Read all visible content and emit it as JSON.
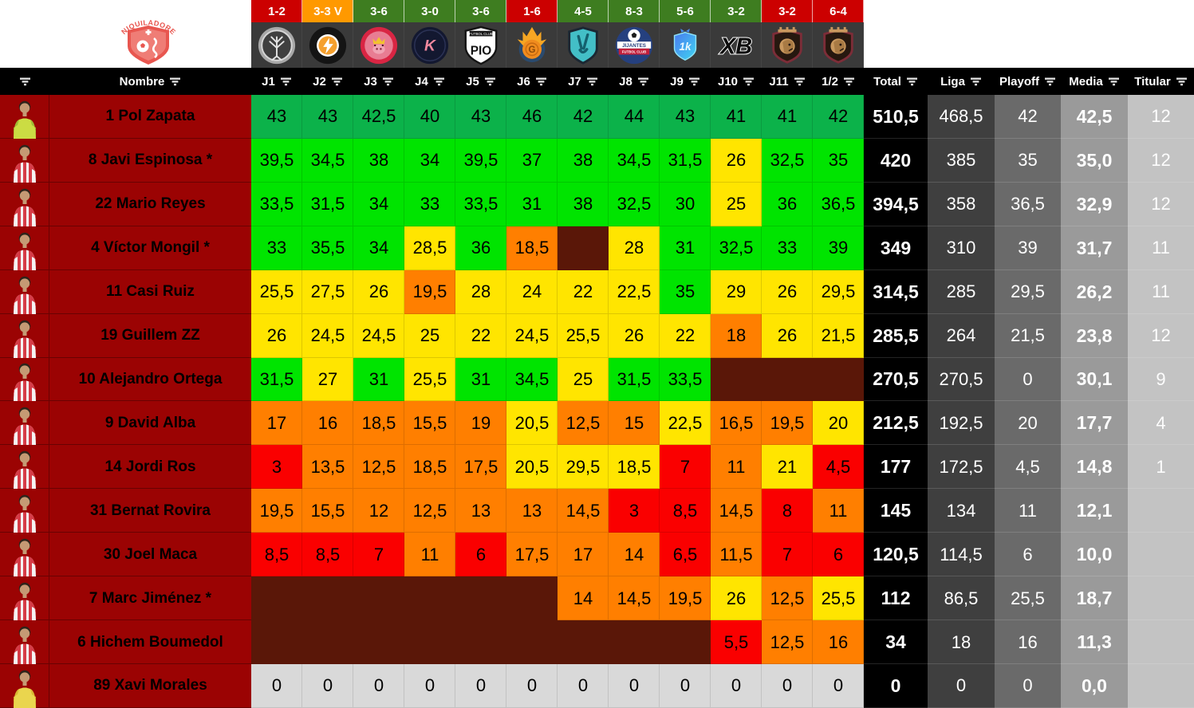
{
  "team": {
    "crest_name": "aniquiladores-fc-crest",
    "crest_color": "#e8564f"
  },
  "colors": {
    "cell": {
      "gd": "#0cb24a",
      "g": "#00e400",
      "y": "#ffe500",
      "o": "#ff7f00",
      "r": "#fa0000",
      "x": "#5a1708",
      "z": "#d9d9d9"
    },
    "result": {
      "win": "#3e7d20",
      "loss": "#cc0000",
      "draw": "#ff9900"
    },
    "name_column_bg": "#9b0303",
    "header_bg": "#000000",
    "logo_row_bg": "#3a3a3a",
    "stat_columns_bg": [
      "#000000",
      "#3f3f3f",
      "#6a6a6a",
      "#9a9a9a",
      "#c3c3c3"
    ]
  },
  "results": [
    {
      "score": "1-2",
      "outcome": "loss"
    },
    {
      "score": "3-3 V",
      "outcome": "draw"
    },
    {
      "score": "3-6",
      "outcome": "win"
    },
    {
      "score": "3-0",
      "outcome": "win"
    },
    {
      "score": "3-6",
      "outcome": "win"
    },
    {
      "score": "1-6",
      "outcome": "loss"
    },
    {
      "score": "4-5",
      "outcome": "win"
    },
    {
      "score": "8-3",
      "outcome": "win"
    },
    {
      "score": "5-6",
      "outcome": "win"
    },
    {
      "score": "3-2",
      "outcome": "win"
    },
    {
      "score": "3-2",
      "outcome": "loss"
    },
    {
      "score": "6-4",
      "outcome": "loss"
    }
  ],
  "opponents": [
    {
      "id": "los-troncos-fc",
      "kind": "troncos"
    },
    {
      "id": "rayo-de-barcelona",
      "kind": "rayo"
    },
    {
      "id": "porcinos-fc",
      "kind": "porcinos"
    },
    {
      "id": "kunisports",
      "kind": "kuni"
    },
    {
      "id": "pio-fc",
      "kind": "pio"
    },
    {
      "id": "saiyans-fc",
      "kind": "saiyans"
    },
    {
      "id": "el-barrio",
      "kind": "barrio"
    },
    {
      "id": "jijantes-fc",
      "kind": "jijantes"
    },
    {
      "id": "1k-fc",
      "kind": "1k"
    },
    {
      "id": "xbuyer-team",
      "kind": "xb"
    },
    {
      "id": "ultimate-mostoles",
      "kind": "um"
    },
    {
      "id": "ultimate-mostoles-2",
      "kind": "um"
    }
  ],
  "header": {
    "name_label": "Nombre",
    "rounds": [
      "J1",
      "J2",
      "J3",
      "J4",
      "J5",
      "J6",
      "J7",
      "J8",
      "J9",
      "J10",
      "J11",
      "1/2"
    ],
    "stats": [
      "Total",
      "Liga",
      "Playoff",
      "Media",
      "Titular"
    ]
  },
  "players": [
    {
      "name": "1 Pol Zapata",
      "kit": "gk",
      "scores": [
        {
          "v": "43",
          "c": "gd"
        },
        {
          "v": "43",
          "c": "gd"
        },
        {
          "v": "42,5",
          "c": "gd"
        },
        {
          "v": "40",
          "c": "gd"
        },
        {
          "v": "43",
          "c": "gd"
        },
        {
          "v": "46",
          "c": "gd"
        },
        {
          "v": "42",
          "c": "gd"
        },
        {
          "v": "44",
          "c": "gd"
        },
        {
          "v": "43",
          "c": "gd"
        },
        {
          "v": "41",
          "c": "gd"
        },
        {
          "v": "41",
          "c": "gd"
        },
        {
          "v": "42",
          "c": "gd"
        }
      ],
      "total": "510,5",
      "liga": "468,5",
      "playoff": "42",
      "media": "42,5",
      "titular": "12"
    },
    {
      "name": "8 Javi Espinosa *",
      "kit": "out",
      "scores": [
        {
          "v": "39,5",
          "c": "g"
        },
        {
          "v": "34,5",
          "c": "g"
        },
        {
          "v": "38",
          "c": "g"
        },
        {
          "v": "34",
          "c": "g"
        },
        {
          "v": "39,5",
          "c": "g"
        },
        {
          "v": "37",
          "c": "g"
        },
        {
          "v": "38",
          "c": "g"
        },
        {
          "v": "34,5",
          "c": "g"
        },
        {
          "v": "31,5",
          "c": "g"
        },
        {
          "v": "26",
          "c": "y"
        },
        {
          "v": "32,5",
          "c": "g"
        },
        {
          "v": "35",
          "c": "g"
        }
      ],
      "total": "420",
      "liga": "385",
      "playoff": "35",
      "media": "35,0",
      "titular": "12"
    },
    {
      "name": "22 Mario Reyes",
      "kit": "out",
      "scores": [
        {
          "v": "33,5",
          "c": "g"
        },
        {
          "v": "31,5",
          "c": "g"
        },
        {
          "v": "34",
          "c": "g"
        },
        {
          "v": "33",
          "c": "g"
        },
        {
          "v": "33,5",
          "c": "g"
        },
        {
          "v": "31",
          "c": "g"
        },
        {
          "v": "38",
          "c": "g"
        },
        {
          "v": "32,5",
          "c": "g"
        },
        {
          "v": "30",
          "c": "g"
        },
        {
          "v": "25",
          "c": "y"
        },
        {
          "v": "36",
          "c": "g"
        },
        {
          "v": "36,5",
          "c": "g"
        }
      ],
      "total": "394,5",
      "liga": "358",
      "playoff": "36,5",
      "media": "32,9",
      "titular": "12"
    },
    {
      "name": "4 Víctor Mongil *",
      "kit": "out",
      "scores": [
        {
          "v": "33",
          "c": "g"
        },
        {
          "v": "35,5",
          "c": "g"
        },
        {
          "v": "34",
          "c": "g"
        },
        {
          "v": "28,5",
          "c": "y"
        },
        {
          "v": "36",
          "c": "g"
        },
        {
          "v": "18,5",
          "c": "o"
        },
        {
          "v": "",
          "c": "x"
        },
        {
          "v": "28",
          "c": "y"
        },
        {
          "v": "31",
          "c": "g"
        },
        {
          "v": "32,5",
          "c": "g"
        },
        {
          "v": "33",
          "c": "g"
        },
        {
          "v": "39",
          "c": "g"
        }
      ],
      "total": "349",
      "liga": "310",
      "playoff": "39",
      "media": "31,7",
      "titular": "11"
    },
    {
      "name": "11 Casi Ruiz",
      "kit": "out",
      "scores": [
        {
          "v": "25,5",
          "c": "y"
        },
        {
          "v": "27,5",
          "c": "y"
        },
        {
          "v": "26",
          "c": "y"
        },
        {
          "v": "19,5",
          "c": "o"
        },
        {
          "v": "28",
          "c": "y"
        },
        {
          "v": "24",
          "c": "y"
        },
        {
          "v": "22",
          "c": "y"
        },
        {
          "v": "22,5",
          "c": "y"
        },
        {
          "v": "35",
          "c": "g"
        },
        {
          "v": "29",
          "c": "y"
        },
        {
          "v": "26",
          "c": "y"
        },
        {
          "v": "29,5",
          "c": "y"
        }
      ],
      "total": "314,5",
      "liga": "285",
      "playoff": "29,5",
      "media": "26,2",
      "titular": "11"
    },
    {
      "name": "19 Guillem ZZ",
      "kit": "out",
      "scores": [
        {
          "v": "26",
          "c": "y"
        },
        {
          "v": "24,5",
          "c": "y"
        },
        {
          "v": "24,5",
          "c": "y"
        },
        {
          "v": "25",
          "c": "y"
        },
        {
          "v": "22",
          "c": "y"
        },
        {
          "v": "24,5",
          "c": "y"
        },
        {
          "v": "25,5",
          "c": "y"
        },
        {
          "v": "26",
          "c": "y"
        },
        {
          "v": "22",
          "c": "y"
        },
        {
          "v": "18",
          "c": "o"
        },
        {
          "v": "26",
          "c": "y"
        },
        {
          "v": "21,5",
          "c": "y"
        }
      ],
      "total": "285,5",
      "liga": "264",
      "playoff": "21,5",
      "media": "23,8",
      "titular": "12"
    },
    {
      "name": "10 Alejandro Ortega",
      "kit": "out",
      "scores": [
        {
          "v": "31,5",
          "c": "g"
        },
        {
          "v": "27",
          "c": "y"
        },
        {
          "v": "31",
          "c": "g"
        },
        {
          "v": "25,5",
          "c": "y"
        },
        {
          "v": "31",
          "c": "g"
        },
        {
          "v": "34,5",
          "c": "g"
        },
        {
          "v": "25",
          "c": "y"
        },
        {
          "v": "31,5",
          "c": "g"
        },
        {
          "v": "33,5",
          "c": "g"
        },
        {
          "v": "",
          "c": "x"
        },
        {
          "v": "",
          "c": "x"
        },
        {
          "v": "",
          "c": "x"
        }
      ],
      "total": "270,5",
      "liga": "270,5",
      "playoff": "0",
      "media": "30,1",
      "titular": "9"
    },
    {
      "name": "9 David Alba",
      "kit": "out",
      "scores": [
        {
          "v": "17",
          "c": "o"
        },
        {
          "v": "16",
          "c": "o"
        },
        {
          "v": "18,5",
          "c": "o"
        },
        {
          "v": "15,5",
          "c": "o"
        },
        {
          "v": "19",
          "c": "o"
        },
        {
          "v": "20,5",
          "c": "y"
        },
        {
          "v": "12,5",
          "c": "o"
        },
        {
          "v": "15",
          "c": "o"
        },
        {
          "v": "22,5",
          "c": "y"
        },
        {
          "v": "16,5",
          "c": "o"
        },
        {
          "v": "19,5",
          "c": "o"
        },
        {
          "v": "20",
          "c": "y"
        }
      ],
      "total": "212,5",
      "liga": "192,5",
      "playoff": "20",
      "media": "17,7",
      "titular": "4"
    },
    {
      "name": "14 Jordi Ros",
      "kit": "out",
      "scores": [
        {
          "v": "3",
          "c": "r"
        },
        {
          "v": "13,5",
          "c": "o"
        },
        {
          "v": "12,5",
          "c": "o"
        },
        {
          "v": "18,5",
          "c": "o"
        },
        {
          "v": "17,5",
          "c": "o"
        },
        {
          "v": "20,5",
          "c": "y"
        },
        {
          "v": "29,5",
          "c": "y"
        },
        {
          "v": "18,5",
          "c": "y"
        },
        {
          "v": "7",
          "c": "r"
        },
        {
          "v": "11",
          "c": "o"
        },
        {
          "v": "21",
          "c": "y"
        },
        {
          "v": "4,5",
          "c": "r"
        }
      ],
      "total": "177",
      "liga": "172,5",
      "playoff": "4,5",
      "media": "14,8",
      "titular": "1"
    },
    {
      "name": "31 Bernat Rovira",
      "kit": "out",
      "scores": [
        {
          "v": "19,5",
          "c": "o"
        },
        {
          "v": "15,5",
          "c": "o"
        },
        {
          "v": "12",
          "c": "o"
        },
        {
          "v": "12,5",
          "c": "o"
        },
        {
          "v": "13",
          "c": "o"
        },
        {
          "v": "13",
          "c": "o"
        },
        {
          "v": "14,5",
          "c": "o"
        },
        {
          "v": "3",
          "c": "r"
        },
        {
          "v": "8,5",
          "c": "r"
        },
        {
          "v": "14,5",
          "c": "o"
        },
        {
          "v": "8",
          "c": "r"
        },
        {
          "v": "11",
          "c": "o"
        }
      ],
      "total": "145",
      "liga": "134",
      "playoff": "11",
      "media": "12,1",
      "titular": ""
    },
    {
      "name": "30 Joel Maca",
      "kit": "out",
      "scores": [
        {
          "v": "8,5",
          "c": "r"
        },
        {
          "v": "8,5",
          "c": "r"
        },
        {
          "v": "7",
          "c": "r"
        },
        {
          "v": "11",
          "c": "o"
        },
        {
          "v": "6",
          "c": "r"
        },
        {
          "v": "17,5",
          "c": "o"
        },
        {
          "v": "17",
          "c": "o"
        },
        {
          "v": "14",
          "c": "o"
        },
        {
          "v": "6,5",
          "c": "r"
        },
        {
          "v": "11,5",
          "c": "o"
        },
        {
          "v": "7",
          "c": "r"
        },
        {
          "v": "6",
          "c": "r"
        }
      ],
      "total": "120,5",
      "liga": "114,5",
      "playoff": "6",
      "media": "10,0",
      "titular": ""
    },
    {
      "name": "7 Marc Jiménez *",
      "kit": "out",
      "scores": [
        {
          "v": "",
          "c": "x"
        },
        {
          "v": "",
          "c": "x"
        },
        {
          "v": "",
          "c": "x"
        },
        {
          "v": "",
          "c": "x"
        },
        {
          "v": "",
          "c": "x"
        },
        {
          "v": "",
          "c": "x"
        },
        {
          "v": "14",
          "c": "o"
        },
        {
          "v": "14,5",
          "c": "o"
        },
        {
          "v": "19,5",
          "c": "o"
        },
        {
          "v": "26",
          "c": "y"
        },
        {
          "v": "12,5",
          "c": "o"
        },
        {
          "v": "25,5",
          "c": "y"
        }
      ],
      "total": "112",
      "liga": "86,5",
      "playoff": "25,5",
      "media": "18,7",
      "titular": ""
    },
    {
      "name": "6 Hichem Boumedol",
      "kit": "out",
      "scores": [
        {
          "v": "",
          "c": "x"
        },
        {
          "v": "",
          "c": "x"
        },
        {
          "v": "",
          "c": "x"
        },
        {
          "v": "",
          "c": "x"
        },
        {
          "v": "",
          "c": "x"
        },
        {
          "v": "",
          "c": "x"
        },
        {
          "v": "",
          "c": "x"
        },
        {
          "v": "",
          "c": "x"
        },
        {
          "v": "",
          "c": "x"
        },
        {
          "v": "5,5",
          "c": "r"
        },
        {
          "v": "12,5",
          "c": "o"
        },
        {
          "v": "16",
          "c": "o"
        }
      ],
      "total": "34",
      "liga": "18",
      "playoff": "16",
      "media": "11,3",
      "titular": ""
    },
    {
      "name": "89 Xavi Morales",
      "kit": "gk2",
      "scores": [
        {
          "v": "0",
          "c": "z"
        },
        {
          "v": "0",
          "c": "z"
        },
        {
          "v": "0",
          "c": "z"
        },
        {
          "v": "0",
          "c": "z"
        },
        {
          "v": "0",
          "c": "z"
        },
        {
          "v": "0",
          "c": "z"
        },
        {
          "v": "0",
          "c": "z"
        },
        {
          "v": "0",
          "c": "z"
        },
        {
          "v": "0",
          "c": "z"
        },
        {
          "v": "0",
          "c": "z"
        },
        {
          "v": "0",
          "c": "z"
        },
        {
          "v": "0",
          "c": "z"
        }
      ],
      "total": "0",
      "liga": "0",
      "playoff": "0",
      "media": "0,0",
      "titular": ""
    }
  ]
}
